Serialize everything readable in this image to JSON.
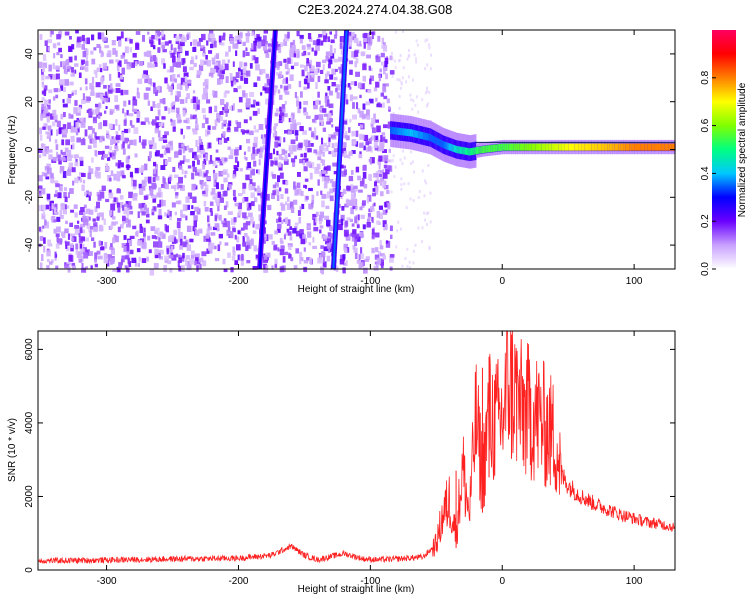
{
  "title": "C2E3.2024.274.04.38.G08",
  "chart_data": [
    {
      "type": "heatmap",
      "xlabel": "Height of straight line (km)",
      "ylabel": "Frequency (Hz)",
      "xlim": [
        -352,
        131
      ],
      "ylim": [
        -50,
        50
      ],
      "xticks": [
        -300,
        -200,
        -100,
        0,
        100
      ],
      "yticks": [
        -40,
        -20,
        0,
        20,
        40
      ],
      "colorbar": {
        "label": "Normalized spectral amplitude",
        "range": [
          0,
          1
        ],
        "ticks": [
          0.0,
          0.2,
          0.4,
          0.6,
          0.8
        ],
        "colormap": [
          "#ffffff",
          "#c8a0ff",
          "#6a00ff",
          "#0000ff",
          "#00c8ff",
          "#00ff80",
          "#80ff00",
          "#ffff00",
          "#ff8000",
          "#ff0000",
          "#ff0060"
        ]
      },
      "features": [
        {
          "kind": "streak",
          "x_at_top": -172,
          "x_at_bottom": -184,
          "amplitude": 0.3
        },
        {
          "kind": "streak",
          "x_at_top": -118,
          "x_at_bottom": -128,
          "amplitude": 0.35
        }
      ],
      "main_signal": {
        "x": [
          -85,
          -70,
          -55,
          -45,
          -35,
          -25,
          -15,
          0,
          20,
          50,
          80,
          100,
          131
        ],
        "freq": [
          8,
          7,
          5,
          2,
          0,
          -1,
          0,
          1,
          1,
          1,
          1,
          1,
          1
        ],
        "amplitude": [
          0.35,
          0.4,
          0.35,
          0.35,
          0.45,
          0.5,
          0.55,
          0.55,
          0.6,
          0.7,
          0.75,
          0.8,
          0.8
        ]
      }
    },
    {
      "type": "line",
      "xlabel": "Height of straight line (km)",
      "ylabel": "SNR (10 * v/v)",
      "xlim": [
        -352,
        131
      ],
      "ylim": [
        0,
        6500
      ],
      "xticks": [
        -300,
        -200,
        -100,
        0,
        100
      ],
      "yticks": [
        0,
        2000,
        4000,
        6000
      ],
      "series": [
        {
          "color": "#ff2020",
          "x": [
            -352,
            -300,
            -250,
            -200,
            -175,
            -160,
            -150,
            -140,
            -120,
            -105,
            -95,
            -80,
            -60,
            -50,
            -45,
            -40,
            -35,
            -30,
            -25,
            -20,
            -15,
            -10,
            -5,
            0,
            5,
            10,
            15,
            20,
            25,
            30,
            35,
            40,
            45,
            50,
            60,
            70,
            80,
            90,
            100,
            110,
            120,
            131
          ],
          "y": [
            250,
            270,
            300,
            320,
            400,
            650,
            400,
            280,
            450,
            300,
            280,
            300,
            350,
            700,
            1500,
            1900,
            1000,
            2800,
            1500,
            4100,
            2600,
            4200,
            4000,
            4100,
            5200,
            4800,
            4300,
            4300,
            4200,
            4000,
            3800,
            3600,
            2600,
            2300,
            2000,
            1800,
            1650,
            1500,
            1400,
            1300,
            1250,
            1150
          ],
          "peaks": [
            {
              "x": -10,
              "y": 5800
            },
            {
              "x": 7,
              "y": 6400
            },
            {
              "x": -35,
              "y": 2700
            },
            {
              "x": -15,
              "y": 5500
            }
          ]
        }
      ]
    }
  ]
}
